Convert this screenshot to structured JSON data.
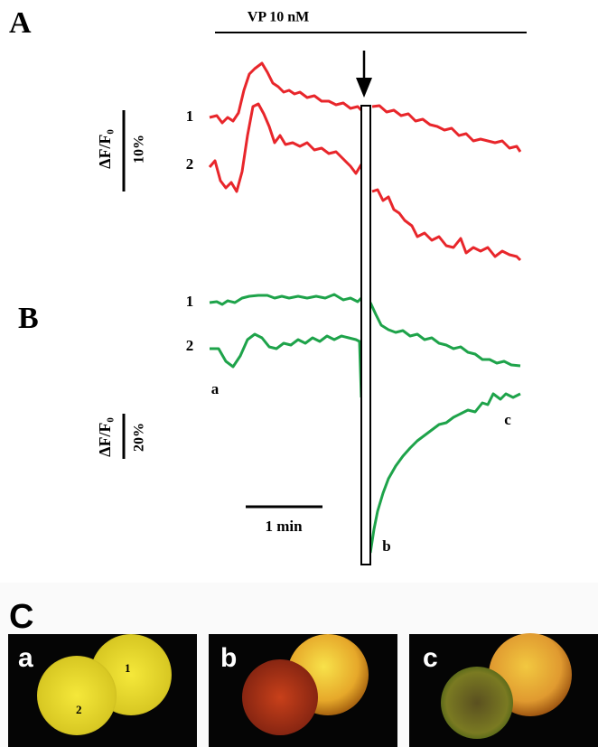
{
  "panel_a": {
    "label": "A",
    "stimulus": "VP 10 nM",
    "trace_labels": [
      "1",
      "2"
    ],
    "y_axis_label": "ΔF/F₀",
    "scale": "10%"
  },
  "panel_b": {
    "label": "B",
    "trace_labels": [
      "1",
      "2"
    ],
    "point_labels": [
      "a",
      "b",
      "c"
    ],
    "y_axis_label": "ΔF/F₀",
    "scale": "20%",
    "time_scale": "1 min"
  },
  "panel_c": {
    "label": "C",
    "images": [
      {
        "label": "a",
        "cells": [
          "1",
          "2"
        ]
      },
      {
        "label": "b"
      },
      {
        "label": "c"
      }
    ]
  }
}
